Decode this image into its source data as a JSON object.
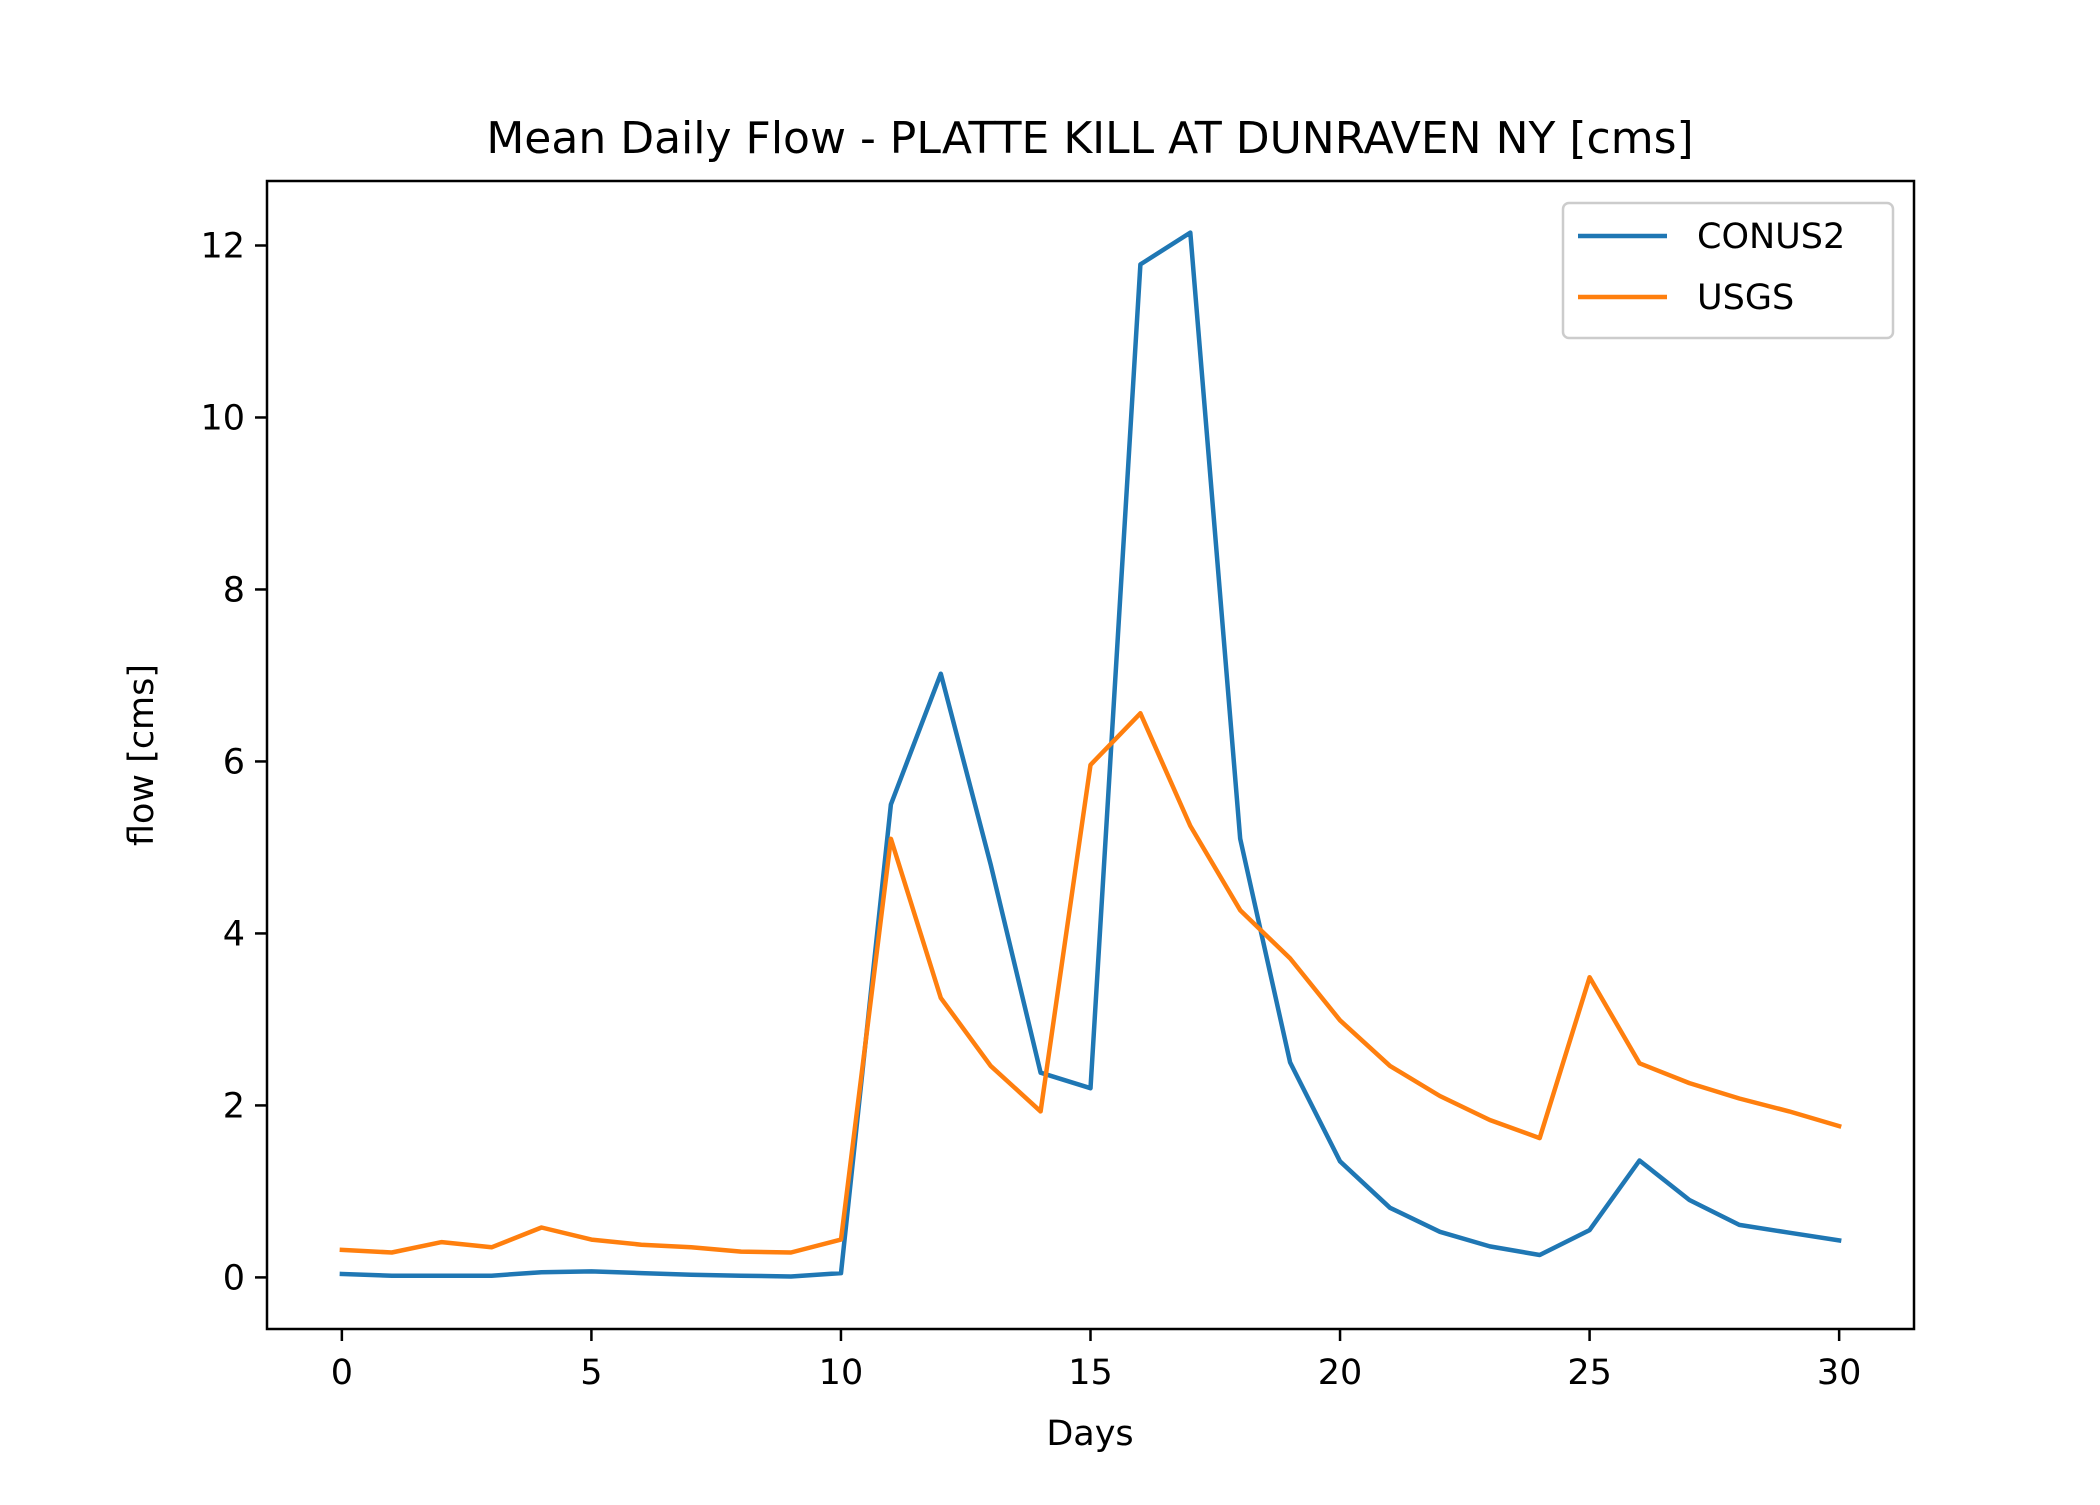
{
  "chart_data": {
    "type": "line",
    "title": "Mean Daily Flow - PLATTE KILL AT DUNRAVEN NY [cms]",
    "xlabel": "Days",
    "ylabel": "flow [cms]",
    "xlim": [
      -1.5,
      31.5
    ],
    "ylim": [
      -0.6,
      12.75
    ],
    "xticks": [
      0,
      5,
      10,
      15,
      20,
      25,
      30
    ],
    "yticks": [
      0,
      2,
      4,
      6,
      8,
      10,
      12
    ],
    "grid": false,
    "legend_position": "top-right",
    "x": [
      0,
      1,
      2,
      3,
      4,
      5,
      6,
      7,
      8,
      9,
      10,
      11,
      12,
      13,
      14,
      15,
      16,
      17,
      18,
      19,
      20,
      21,
      22,
      23,
      24,
      25,
      26,
      27,
      28,
      29,
      30
    ],
    "series": [
      {
        "name": "CONUS2",
        "color": "#1f77b4",
        "values": [
          0.04,
          0.02,
          0.02,
          0.02,
          0.06,
          0.07,
          0.05,
          0.03,
          0.02,
          0.01,
          0.05,
          5.5,
          7.02,
          4.8,
          2.38,
          2.2,
          11.78,
          12.15,
          5.1,
          2.5,
          1.35,
          0.81,
          0.53,
          0.36,
          0.26,
          0.55,
          1.36,
          0.9,
          0.61,
          0.52,
          0.43
        ]
      },
      {
        "name": "USGS",
        "color": "#ff7f0e",
        "values": [
          0.32,
          0.29,
          0.41,
          0.35,
          0.58,
          0.44,
          0.38,
          0.35,
          0.3,
          0.29,
          0.44,
          5.1,
          3.25,
          2.46,
          1.93,
          5.96,
          6.56,
          5.25,
          4.27,
          3.71,
          2.99,
          2.46,
          2.11,
          1.83,
          1.62,
          3.49,
          2.49,
          2.26,
          2.08,
          1.93,
          1.76
        ]
      }
    ]
  }
}
